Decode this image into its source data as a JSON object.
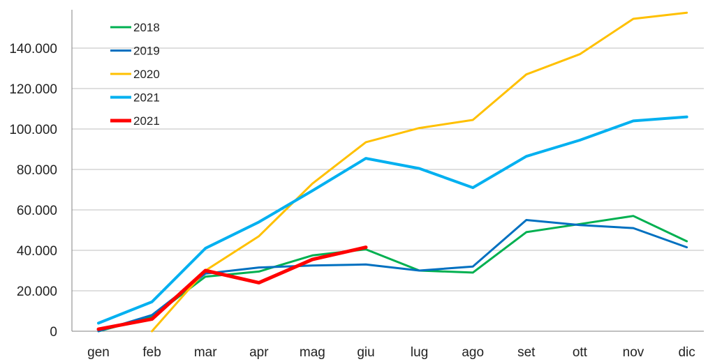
{
  "chart_data": {
    "type": "line",
    "title": "",
    "xlabel": "",
    "ylabel": "",
    "categories": [
      "gen",
      "feb",
      "mar",
      "apr",
      "mag",
      "giu",
      "lug",
      "ago",
      "set",
      "ott",
      "nov",
      "dic"
    ],
    "ylim": [
      0,
      155000
    ],
    "yticks": [
      0,
      20000,
      40000,
      60000,
      80000,
      100000,
      120000,
      140000
    ],
    "ytick_labels": [
      "0",
      "20.000",
      "40.000",
      "60.000",
      "80.000",
      "100.000",
      "120.000",
      "140.000"
    ],
    "grid": true,
    "legend_position": "top-left",
    "series": [
      {
        "name": "2018",
        "color": "#00b050",
        "width": 3,
        "values": [
          0,
          7000,
          27000,
          29500,
          37500,
          40500,
          30000,
          29000,
          49000,
          53000,
          57000,
          44500
        ]
      },
      {
        "name": "2019",
        "color": "#0070c0",
        "width": 3,
        "values": [
          0,
          8000,
          28500,
          31500,
          32500,
          33000,
          30000,
          32000,
          55000,
          52500,
          51000,
          41500
        ]
      },
      {
        "name": "2020",
        "color": "#ffc000",
        "width": 3,
        "values": [
          null,
          0,
          30000,
          47000,
          73000,
          93500,
          100500,
          104500,
          127000,
          137000,
          154500,
          157500
        ]
      },
      {
        "name": "2021",
        "color": "#00b0f0",
        "width": 4,
        "values": [
          4000,
          14500,
          41000,
          54000,
          69500,
          85500,
          80500,
          71000,
          86500,
          94500,
          104000,
          106000
        ]
      },
      {
        "name": "2021",
        "color": "#ff0000",
        "width": 5,
        "values": [
          1000,
          6000,
          30000,
          24000,
          35500,
          41500,
          null,
          null,
          null,
          null,
          null,
          null
        ]
      }
    ]
  }
}
